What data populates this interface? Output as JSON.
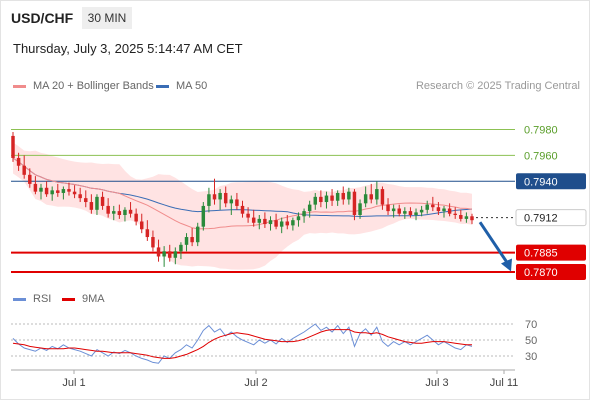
{
  "header": {
    "symbol": "USD/CHF",
    "interval": "30 MIN",
    "datetime": "Thursday, July 3, 2025 5:14:47 AM CET"
  },
  "legend": {
    "ma20": "MA 20 + Bollinger Bands",
    "ma50": "MA 50",
    "rsi": "RSI",
    "rsi_ma": "9MA",
    "credit": "Research © 2025 Trading Central"
  },
  "colors": {
    "up": "#2a8a3a",
    "down": "#d62424",
    "ma20": "#f08c8c",
    "bollinger_fill": "#ffdede",
    "ma50": "#3a6db5",
    "target": "#8cc152",
    "pivot": "#1f4e8c",
    "support": "#e00000",
    "current": "#333333",
    "arrow": "#1f5fa8",
    "rsi": "#6b8fd6",
    "rsi_ma": "#e00000"
  },
  "chart_data": {
    "type": "candlestick",
    "y_range": [
      0.786,
      0.7995
    ],
    "x_labels": [
      "Jul 1",
      "Jul 2",
      "Jul 3",
      "Jul 11"
    ],
    "levels": [
      {
        "name": "target-high",
        "value": 0.798,
        "label": "0.7980",
        "style": "target"
      },
      {
        "name": "target-mid",
        "value": 0.796,
        "label": "0.7960",
        "style": "target"
      },
      {
        "name": "pivot",
        "value": 0.794,
        "label": "0.7940",
        "style": "pivot"
      },
      {
        "name": "current-price",
        "value": 0.7912,
        "label": "0.7912",
        "style": "current"
      },
      {
        "name": "support-1",
        "value": 0.7885,
        "label": "0.7885",
        "style": "support"
      },
      {
        "name": "support-2",
        "value": 0.787,
        "label": "0.7870",
        "style": "support"
      }
    ],
    "forecast": {
      "from": 0.791,
      "to": 0.7872
    },
    "candles": [
      [
        0.7975,
        0.7978,
        0.7955,
        0.7958
      ],
      [
        0.7958,
        0.7962,
        0.7948,
        0.7952
      ],
      [
        0.7952,
        0.796,
        0.7942,
        0.7945
      ],
      [
        0.7945,
        0.795,
        0.7935,
        0.7938
      ],
      [
        0.7938,
        0.7944,
        0.793,
        0.7932
      ],
      [
        0.7932,
        0.7938,
        0.7926,
        0.7935
      ],
      [
        0.7935,
        0.794,
        0.7928,
        0.793
      ],
      [
        0.793,
        0.7936,
        0.7925,
        0.7933
      ],
      [
        0.7933,
        0.7938,
        0.7928,
        0.7931
      ],
      [
        0.7931,
        0.7936,
        0.7926,
        0.7934
      ],
      [
        0.7934,
        0.7939,
        0.7929,
        0.7932
      ],
      [
        0.7932,
        0.7937,
        0.7927,
        0.793
      ],
      [
        0.793,
        0.7935,
        0.7924,
        0.7927
      ],
      [
        0.7927,
        0.7933,
        0.792,
        0.7924
      ],
      [
        0.7924,
        0.793,
        0.7915,
        0.7918
      ],
      [
        0.7918,
        0.793,
        0.7914,
        0.7928
      ],
      [
        0.7928,
        0.7932,
        0.7918,
        0.7921
      ],
      [
        0.7921,
        0.7927,
        0.7912,
        0.7915
      ],
      [
        0.7915,
        0.7921,
        0.791,
        0.7917
      ],
      [
        0.7917,
        0.7922,
        0.7911,
        0.7914
      ],
      [
        0.7914,
        0.792,
        0.7909,
        0.7918
      ],
      [
        0.7918,
        0.7924,
        0.7912,
        0.7915
      ],
      [
        0.7915,
        0.7919,
        0.7906,
        0.7909
      ],
      [
        0.7909,
        0.7915,
        0.79,
        0.7903
      ],
      [
        0.7903,
        0.791,
        0.7894,
        0.7897
      ],
      [
        0.7897,
        0.7902,
        0.7886,
        0.7889
      ],
      [
        0.7889,
        0.7895,
        0.7878,
        0.7882
      ],
      [
        0.7882,
        0.789,
        0.7874,
        0.7886
      ],
      [
        0.7886,
        0.7891,
        0.7878,
        0.7881
      ],
      [
        0.7881,
        0.7889,
        0.7876,
        0.7886
      ],
      [
        0.7886,
        0.7893,
        0.788,
        0.7891
      ],
      [
        0.7891,
        0.79,
        0.7886,
        0.7897
      ],
      [
        0.7897,
        0.7904,
        0.789,
        0.7893
      ],
      [
        0.7893,
        0.7908,
        0.789,
        0.7905
      ],
      [
        0.7905,
        0.7924,
        0.7902,
        0.7921
      ],
      [
        0.7921,
        0.7935,
        0.7916,
        0.793
      ],
      [
        0.793,
        0.7942,
        0.7922,
        0.7926
      ],
      [
        0.7926,
        0.7934,
        0.7918,
        0.7931
      ],
      [
        0.7931,
        0.7936,
        0.792,
        0.7923
      ],
      [
        0.7923,
        0.7929,
        0.7914,
        0.7926
      ],
      [
        0.7926,
        0.7931,
        0.7918,
        0.7921
      ],
      [
        0.7921,
        0.7925,
        0.7912,
        0.7915
      ],
      [
        0.7915,
        0.792,
        0.7908,
        0.7912
      ],
      [
        0.7912,
        0.7918,
        0.7905,
        0.7908
      ],
      [
        0.7908,
        0.7914,
        0.7903,
        0.7911
      ],
      [
        0.7911,
        0.7916,
        0.7904,
        0.7907
      ],
      [
        0.7907,
        0.7913,
        0.7902,
        0.791
      ],
      [
        0.791,
        0.7915,
        0.7903,
        0.7905
      ],
      [
        0.7905,
        0.7912,
        0.79,
        0.7909
      ],
      [
        0.7909,
        0.7914,
        0.7903,
        0.7906
      ],
      [
        0.7906,
        0.7912,
        0.7902,
        0.791
      ],
      [
        0.791,
        0.7916,
        0.7905,
        0.7913
      ],
      [
        0.7913,
        0.7919,
        0.7908,
        0.7917
      ],
      [
        0.7917,
        0.7925,
        0.7912,
        0.7922
      ],
      [
        0.7922,
        0.7931,
        0.7918,
        0.7928
      ],
      [
        0.7928,
        0.7933,
        0.792,
        0.7924
      ],
      [
        0.7924,
        0.7932,
        0.7919,
        0.7929
      ],
      [
        0.7929,
        0.7934,
        0.7921,
        0.7925
      ],
      [
        0.7925,
        0.7933,
        0.7921,
        0.7931
      ],
      [
        0.7931,
        0.7936,
        0.7922,
        0.7926
      ],
      [
        0.7926,
        0.7935,
        0.7922,
        0.7932
      ],
      [
        0.7932,
        0.7934,
        0.791,
        0.7914
      ],
      [
        0.7914,
        0.7926,
        0.7911,
        0.7923
      ],
      [
        0.7923,
        0.7936,
        0.792,
        0.793
      ],
      [
        0.793,
        0.7938,
        0.7923,
        0.7926
      ],
      [
        0.7926,
        0.794,
        0.7922,
        0.7934
      ],
      [
        0.7934,
        0.7936,
        0.7918,
        0.7922
      ],
      [
        0.7922,
        0.7927,
        0.7914,
        0.7917
      ],
      [
        0.7917,
        0.7922,
        0.7912,
        0.7919
      ],
      [
        0.7919,
        0.7922,
        0.7913,
        0.7915
      ],
      [
        0.7915,
        0.792,
        0.7911,
        0.7917
      ],
      [
        0.7917,
        0.792,
        0.7912,
        0.7914
      ],
      [
        0.7914,
        0.7919,
        0.791,
        0.7916
      ],
      [
        0.7916,
        0.7921,
        0.7913,
        0.7918
      ],
      [
        0.7918,
        0.7925,
        0.7915,
        0.7922
      ],
      [
        0.7922,
        0.7928,
        0.7917,
        0.792
      ],
      [
        0.792,
        0.7924,
        0.7914,
        0.7917
      ],
      [
        0.7917,
        0.7921,
        0.7912,
        0.7919
      ],
      [
        0.7919,
        0.7923,
        0.7913,
        0.7915
      ],
      [
        0.7915,
        0.792,
        0.7911,
        0.7914
      ],
      [
        0.7914,
        0.7918,
        0.7909,
        0.7911
      ],
      [
        0.7911,
        0.7916,
        0.7908,
        0.7913
      ],
      [
        0.7913,
        0.7915,
        0.7907,
        0.791
      ]
    ],
    "rsi": {
      "levels": [
        70,
        50,
        30
      ],
      "range": [
        15,
        80
      ],
      "values": [
        52,
        45,
        40,
        38,
        36,
        40,
        37,
        42,
        39,
        44,
        40,
        38,
        36,
        33,
        30,
        38,
        34,
        30,
        35,
        33,
        37,
        34,
        30,
        27,
        25,
        22,
        21,
        30,
        27,
        34,
        38,
        44,
        40,
        50,
        62,
        68,
        60,
        64,
        55,
        60,
        54,
        50,
        47,
        44,
        50,
        46,
        50,
        45,
        52,
        47,
        52,
        56,
        60,
        65,
        70,
        62,
        66,
        60,
        68,
        58,
        66,
        42,
        58,
        64,
        56,
        66,
        48,
        42,
        48,
        44,
        48,
        44,
        48,
        52,
        56,
        50,
        44,
        48,
        44,
        40,
        38,
        44,
        42
      ],
      "ma": [
        46,
        45,
        44,
        42,
        41,
        40,
        39,
        39,
        39,
        39,
        40,
        40,
        39,
        38,
        37,
        36,
        36,
        35,
        34,
        34,
        34,
        34,
        33,
        32,
        31,
        29,
        28,
        27,
        27,
        28,
        30,
        32,
        35,
        38,
        42,
        47,
        51,
        54,
        56,
        58,
        59,
        58,
        57,
        55,
        53,
        51,
        50,
        49,
        48,
        48,
        48,
        49,
        51,
        54,
        57,
        60,
        62,
        63,
        63,
        63,
        63,
        60,
        59,
        59,
        58,
        59,
        57,
        54,
        52,
        50,
        48,
        47,
        46,
        46,
        47,
        48,
        48,
        48,
        47,
        46,
        45,
        44,
        44
      ]
    }
  }
}
